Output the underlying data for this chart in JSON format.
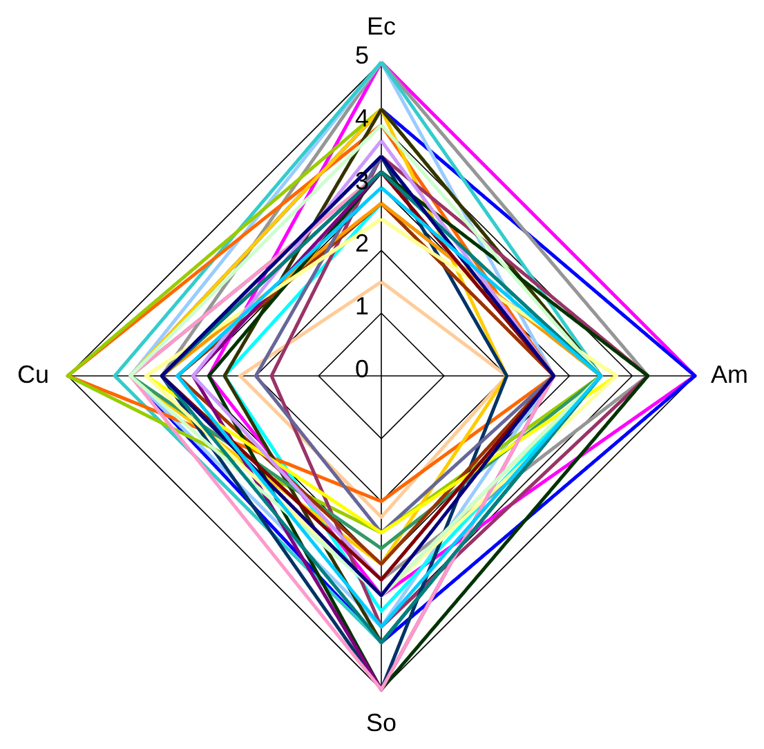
{
  "chart_data": {
    "type": "radar",
    "categories": [
      "Ec",
      "Am",
      "So",
      "Cu"
    ],
    "ylim": [
      0,
      5
    ],
    "yticks": [
      0,
      1,
      2,
      3,
      4,
      5
    ],
    "legend": false,
    "series": [
      {
        "color": "#ff00ff",
        "values": [
          5,
          5,
          3.5,
          2.75
        ]
      },
      {
        "color": "#0000ff",
        "values": [
          4.25,
          5,
          4.25,
          4
        ]
      },
      {
        "color": "#969696",
        "values": [
          5,
          4.25,
          3.25,
          3.5
        ]
      },
      {
        "color": "#99ccff",
        "values": [
          5,
          2.75,
          4,
          4
        ]
      },
      {
        "color": "#33cccc",
        "values": [
          5,
          3.5,
          4.25,
          4.25
        ]
      },
      {
        "color": "#00ffff",
        "values": [
          2.75,
          3.5,
          3.75,
          2.5
        ]
      },
      {
        "color": "#ffcc99",
        "values": [
          1.5,
          2,
          2.25,
          2.25
        ]
      },
      {
        "color": "#ff6600",
        "values": [
          4,
          2.75,
          2,
          5
        ]
      },
      {
        "color": "#99cc00",
        "values": [
          4.25,
          3.5,
          2.5,
          5
        ]
      },
      {
        "color": "#ffcc00",
        "values": [
          4.25,
          2,
          3,
          4
        ]
      },
      {
        "color": "#333300",
        "values": [
          4.25,
          3.5,
          4.25,
          2.5
        ]
      },
      {
        "color": "#993366",
        "values": [
          3.5,
          4.25,
          4,
          1.75
        ]
      },
      {
        "color": "#003366",
        "values": [
          3.5,
          2,
          5,
          3.5
        ]
      },
      {
        "color": "#339966",
        "values": [
          3.25,
          3.5,
          2.75,
          4
        ]
      },
      {
        "color": "#993300",
        "values": [
          2.75,
          2.75,
          3,
          3.25
        ]
      },
      {
        "color": "#ff9900",
        "values": [
          2.75,
          3.5,
          3.5,
          3.5
        ]
      },
      {
        "color": "#666699",
        "values": [
          3.5,
          2.75,
          2.5,
          2
        ]
      },
      {
        "color": "#003300",
        "values": [
          3.25,
          4.25,
          5,
          2.75
        ]
      },
      {
        "color": "#800080",
        "values": [
          3.25,
          2.75,
          5,
          3
        ]
      },
      {
        "color": "#ffff00",
        "values": [
          2.5,
          3.75,
          2.5,
          3.75
        ]
      },
      {
        "color": "#ffff99",
        "values": [
          2.5,
          3.75,
          3.5,
          3.75
        ]
      },
      {
        "color": "#cc99ff",
        "values": [
          3.75,
          2.75,
          3.25,
          3
        ]
      },
      {
        "color": "#ff99cc",
        "values": [
          3.25,
          2.75,
          5,
          4
        ]
      },
      {
        "color": "#ccffcc",
        "values": [
          4,
          3.5,
          3.5,
          4
        ]
      },
      {
        "color": "#800000",
        "values": [
          3.25,
          2.75,
          3.25,
          3.5
        ]
      },
      {
        "color": "#008080",
        "values": [
          3.25,
          3.5,
          4.25,
          3.5
        ]
      },
      {
        "color": "#000080",
        "values": [
          3.5,
          2.75,
          3.5,
          3.5
        ]
      },
      {
        "color": "#00ccff",
        "values": [
          3,
          3.5,
          4,
          3.25
        ]
      }
    ]
  }
}
